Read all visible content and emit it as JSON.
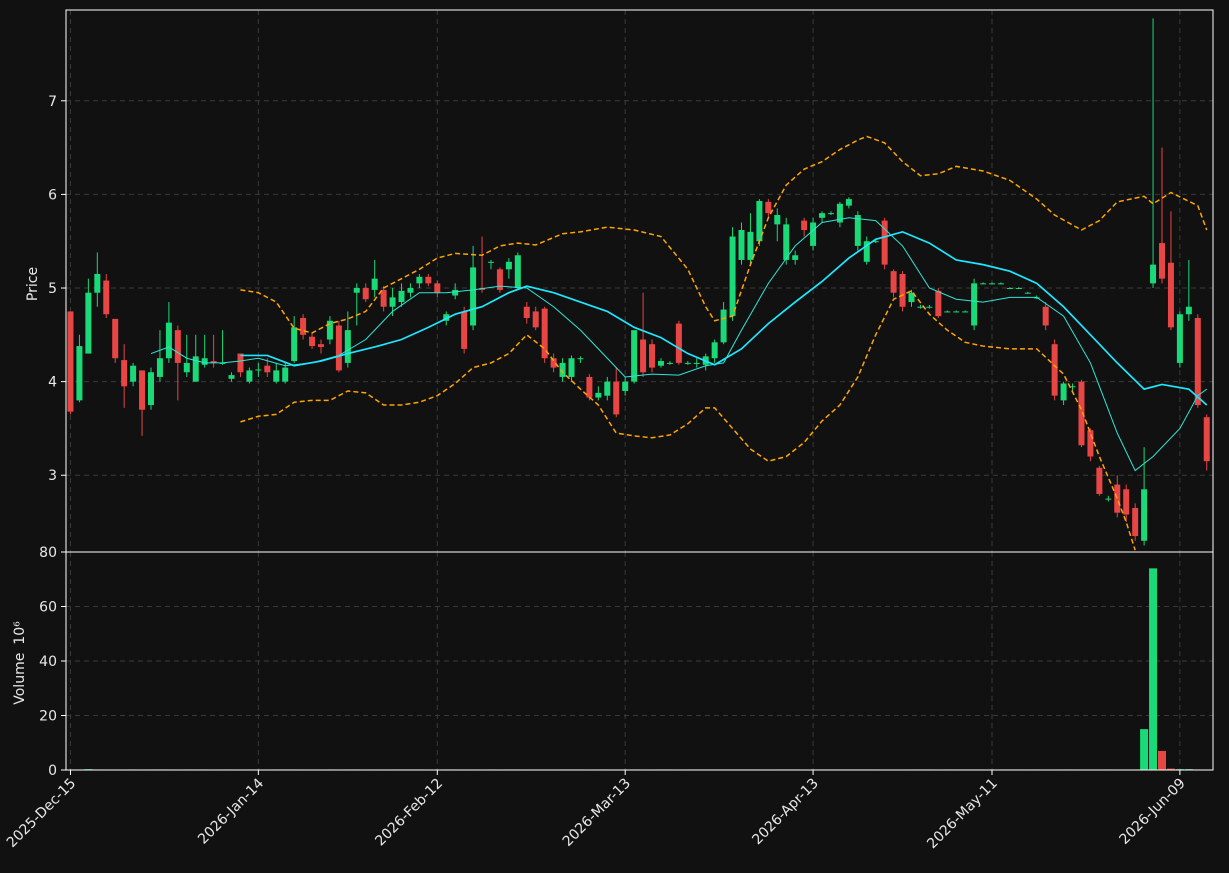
{
  "chart_data": {
    "type": "candlestick",
    "ylabel": "Price",
    "ylim": [
      2.18,
      7.97
    ],
    "yticks": [
      3,
      4,
      5,
      6,
      7
    ],
    "xlim": [
      -0.5,
      127.7
    ],
    "xticks": [
      {
        "value": 0,
        "label": "2025-Dec-15"
      },
      {
        "value": 21,
        "label": "2026-Jan-14"
      },
      {
        "value": 41,
        "label": "2026-Feb-12"
      },
      {
        "value": 62,
        "label": "2026-Mar-13"
      },
      {
        "value": 83,
        "label": "2026-Apr-13"
      },
      {
        "value": 103,
        "label": "2026-May-11"
      },
      {
        "value": 124,
        "label": "2026-Jun-09"
      }
    ],
    "grid": true,
    "up_color": "#19d978",
    "down_color": "#e84545",
    "ohlc": [
      [
        4.75,
        4.75,
        3.65,
        3.68
      ],
      [
        3.8,
        4.5,
        3.78,
        4.38
      ],
      [
        4.3,
        5.1,
        4.3,
        4.95
      ],
      [
        4.95,
        5.38,
        4.8,
        5.15
      ],
      [
        5.08,
        5.15,
        4.68,
        4.72
      ],
      [
        4.67,
        4.67,
        4.2,
        4.25
      ],
      [
        4.23,
        4.4,
        3.72,
        3.95
      ],
      [
        4.0,
        4.2,
        3.95,
        4.17
      ],
      [
        4.12,
        4.12,
        3.42,
        3.7
      ],
      [
        3.75,
        4.15,
        3.7,
        4.1
      ],
      [
        4.05,
        4.55,
        4.0,
        4.25
      ],
      [
        4.25,
        4.85,
        4.2,
        4.63
      ],
      [
        4.55,
        4.6,
        3.8,
        4.2
      ],
      [
        4.1,
        4.5,
        4.05,
        4.2
      ],
      [
        4.0,
        4.5,
        4.0,
        4.27
      ],
      [
        4.18,
        4.5,
        4.15,
        4.25
      ],
      [
        4.22,
        4.5,
        4.15,
        4.2
      ],
      [
        4.2,
        4.55,
        4.18,
        4.2
      ],
      [
        4.03,
        4.1,
        4.0,
        4.07
      ],
      [
        4.3,
        4.3,
        4.05,
        4.1
      ],
      [
        4.0,
        4.15,
        3.98,
        4.12
      ],
      [
        4.12,
        4.2,
        4.05,
        4.13
      ],
      [
        4.17,
        4.25,
        4.05,
        4.1
      ],
      [
        4.0,
        4.2,
        3.98,
        4.12
      ],
      [
        4.0,
        4.2,
        3.98,
        4.15
      ],
      [
        4.22,
        4.7,
        4.2,
        4.58
      ],
      [
        4.68,
        4.72,
        4.45,
        4.5
      ],
      [
        4.48,
        4.52,
        4.35,
        4.38
      ],
      [
        4.4,
        4.45,
        4.3,
        4.37
      ],
      [
        4.45,
        4.7,
        4.4,
        4.65
      ],
      [
        4.6,
        4.65,
        4.1,
        4.12
      ],
      [
        4.2,
        4.75,
        4.15,
        4.55
      ],
      [
        4.95,
        5.05,
        4.6,
        5.0
      ],
      [
        5.0,
        5.05,
        4.85,
        4.88
      ],
      [
        4.98,
        5.3,
        4.9,
        5.1
      ],
      [
        4.98,
        5.02,
        4.75,
        4.8
      ],
      [
        4.8,
        5.0,
        4.7,
        4.9
      ],
      [
        4.85,
        5.05,
        4.8,
        4.97
      ],
      [
        4.95,
        5.05,
        4.9,
        5.0
      ],
      [
        5.05,
        5.15,
        5.0,
        5.12
      ],
      [
        5.12,
        5.15,
        5.02,
        5.05
      ],
      [
        5.05,
        5.08,
        4.9,
        4.95
      ],
      [
        4.65,
        4.75,
        4.6,
        4.72
      ],
      [
        4.92,
        5.05,
        4.88,
        4.98
      ],
      [
        4.75,
        4.8,
        4.3,
        4.35
      ],
      [
        4.6,
        5.45,
        4.55,
        5.22
      ],
      [
        5.0,
        5.55,
        4.95,
        4.98
      ],
      [
        5.27,
        5.3,
        5.2,
        5.28
      ],
      [
        5.2,
        5.22,
        4.95,
        4.98
      ],
      [
        5.2,
        5.32,
        5.1,
        5.28
      ],
      [
        5.0,
        5.38,
        4.98,
        5.35
      ],
      [
        4.8,
        4.85,
        4.62,
        4.68
      ],
      [
        4.75,
        4.8,
        4.55,
        4.58
      ],
      [
        4.78,
        4.8,
        4.2,
        4.25
      ],
      [
        4.25,
        4.3,
        4.1,
        4.15
      ],
      [
        4.05,
        4.25,
        4.0,
        4.2
      ],
      [
        4.05,
        4.28,
        4.0,
        4.25
      ],
      [
        4.25,
        4.27,
        4.2,
        4.25
      ],
      [
        4.05,
        4.08,
        3.8,
        3.83
      ],
      [
        3.83,
        3.95,
        3.8,
        3.88
      ],
      [
        3.85,
        4.05,
        3.8,
        4.0
      ],
      [
        4.0,
        4.15,
        3.62,
        3.65
      ],
      [
        3.9,
        4.05,
        3.85,
        4.0
      ],
      [
        4.0,
        4.55,
        3.98,
        4.55
      ],
      [
        4.45,
        4.95,
        4.05,
        4.1
      ],
      [
        4.4,
        4.45,
        4.1,
        4.15
      ],
      [
        4.17,
        4.25,
        4.15,
        4.22
      ],
      [
        4.2,
        4.22,
        4.18,
        4.2
      ],
      [
        4.62,
        4.65,
        4.18,
        4.2
      ],
      [
        4.2,
        4.22,
        4.18,
        4.2
      ],
      [
        4.2,
        4.25,
        4.15,
        4.2
      ],
      [
        4.18,
        4.3,
        4.12,
        4.27
      ],
      [
        4.25,
        4.45,
        4.2,
        4.42
      ],
      [
        4.42,
        4.85,
        4.4,
        4.77
      ],
      [
        4.7,
        5.65,
        4.65,
        5.55
      ],
      [
        5.3,
        5.7,
        5.25,
        5.62
      ],
      [
        5.3,
        5.8,
        5.25,
        5.6
      ],
      [
        5.5,
        5.95,
        5.45,
        5.93
      ],
      [
        5.92,
        5.95,
        5.75,
        5.8
      ],
      [
        5.68,
        5.85,
        5.5,
        5.78
      ],
      [
        5.3,
        5.75,
        5.25,
        5.68
      ],
      [
        5.3,
        5.4,
        5.25,
        5.35
      ],
      [
        5.72,
        5.75,
        5.55,
        5.62
      ],
      [
        5.45,
        5.75,
        5.4,
        5.7
      ],
      [
        5.75,
        5.82,
        5.7,
        5.8
      ],
      [
        5.8,
        5.82,
        5.78,
        5.8
      ],
      [
        5.7,
        5.92,
        5.65,
        5.9
      ],
      [
        5.88,
        5.97,
        5.85,
        5.95
      ],
      [
        5.45,
        5.82,
        5.4,
        5.78
      ],
      [
        5.28,
        5.55,
        5.25,
        5.5
      ],
      [
        5.5,
        5.52,
        5.48,
        5.5
      ],
      [
        5.72,
        5.75,
        5.2,
        5.25
      ],
      [
        5.18,
        5.2,
        4.9,
        4.95
      ],
      [
        5.15,
        5.18,
        4.75,
        4.8
      ],
      [
        4.85,
        4.98,
        4.8,
        4.95
      ],
      [
        4.8,
        4.82,
        4.78,
        4.8
      ],
      [
        4.8,
        4.82,
        4.78,
        4.8
      ],
      [
        4.97,
        5.0,
        4.68,
        4.7
      ],
      [
        4.75,
        4.76,
        4.74,
        4.75
      ],
      [
        4.75,
        4.76,
        4.74,
        4.75
      ],
      [
        4.75,
        4.76,
        4.74,
        4.75
      ],
      [
        4.6,
        5.1,
        4.55,
        5.05
      ],
      [
        5.05,
        5.06,
        5.04,
        5.05
      ],
      [
        5.05,
        5.06,
        5.04,
        5.05
      ],
      [
        5.05,
        5.06,
        5.04,
        5.05
      ],
      [
        5.0,
        5.01,
        4.99,
        5.0
      ],
      [
        5.0,
        5.01,
        4.99,
        5.0
      ],
      [
        4.95,
        4.96,
        4.94,
        4.95
      ],
      [
        4.9,
        4.92,
        4.88,
        4.9
      ],
      [
        4.8,
        4.85,
        4.55,
        4.6
      ],
      [
        4.4,
        4.45,
        3.8,
        3.85
      ],
      [
        3.8,
        4.0,
        3.75,
        3.98
      ],
      [
        3.95,
        3.98,
        3.9,
        3.95
      ],
      [
        4.0,
        4.02,
        3.3,
        3.32
      ],
      [
        3.48,
        3.5,
        3.15,
        3.2
      ],
      [
        3.08,
        3.1,
        2.78,
        2.8
      ],
      [
        2.75,
        2.78,
        2.72,
        2.75
      ],
      [
        2.9,
        3.0,
        2.55,
        2.6
      ],
      [
        2.85,
        2.9,
        2.5,
        2.58
      ],
      [
        2.65,
        2.7,
        2.3,
        2.35
      ],
      [
        2.3,
        3.3,
        2.25,
        2.85
      ],
      [
        5.05,
        7.88,
        5.0,
        5.25
      ],
      [
        5.48,
        6.5,
        5.05,
        5.1
      ],
      [
        5.27,
        5.82,
        4.55,
        4.58
      ],
      [
        4.2,
        4.75,
        4.15,
        4.72
      ],
      [
        4.72,
        5.3,
        4.65,
        4.8
      ],
      [
        4.68,
        4.72,
        3.72,
        3.75
      ],
      [
        3.62,
        3.65,
        3.05,
        3.15
      ]
    ],
    "lines": [
      {
        "color": "#2ee6d6",
        "width": 1,
        "style": "solid",
        "x": [
          9,
          11,
          13,
          15,
          17,
          19,
          21,
          24,
          27,
          30,
          33,
          36,
          39,
          42,
          45,
          48,
          51,
          54,
          57,
          60,
          62,
          65,
          68,
          71,
          73,
          75,
          78,
          81,
          84,
          87,
          90,
          93,
          96,
          99,
          102,
          105,
          108,
          111,
          114,
          117,
          119,
          121,
          124,
          126,
          127
        ],
        "values": [
          4.3,
          4.37,
          4.25,
          4.2,
          4.2,
          4.22,
          4.25,
          4.17,
          4.2,
          4.28,
          4.45,
          4.75,
          4.95,
          4.95,
          4.98,
          5.02,
          5.0,
          4.8,
          4.55,
          4.25,
          4.05,
          4.08,
          4.07,
          4.17,
          4.2,
          4.55,
          5.05,
          5.45,
          5.7,
          5.75,
          5.72,
          5.45,
          5.0,
          4.88,
          4.85,
          4.9,
          4.9,
          4.7,
          4.2,
          3.45,
          3.05,
          3.2,
          3.5,
          3.85,
          3.92
        ]
      },
      {
        "color": "#1ee8ff",
        "width": 1.7,
        "style": "solid",
        "x": [
          19,
          22,
          25,
          28,
          31,
          34,
          37,
          40,
          43,
          46,
          49,
          51,
          54,
          57,
          60,
          63,
          66,
          69,
          72,
          75,
          78,
          81,
          84,
          87,
          90,
          93,
          96,
          99,
          102,
          105,
          108,
          111,
          114,
          117,
          120,
          122,
          125,
          127
        ],
        "values": [
          4.28,
          4.28,
          4.17,
          4.22,
          4.3,
          4.37,
          4.45,
          4.58,
          4.72,
          4.8,
          4.95,
          5.02,
          4.95,
          4.85,
          4.75,
          4.58,
          4.47,
          4.3,
          4.18,
          4.35,
          4.62,
          4.85,
          5.07,
          5.32,
          5.52,
          5.6,
          5.48,
          5.3,
          5.25,
          5.18,
          5.05,
          4.8,
          4.5,
          4.2,
          3.92,
          3.97,
          3.92,
          3.75
        ]
      },
      {
        "color": "#ffa500",
        "width": 1.5,
        "style": "dashed",
        "x": [
          19,
          21,
          23,
          25,
          27,
          29,
          31,
          33,
          35,
          37,
          39,
          41,
          43,
          46,
          48,
          50,
          52,
          55,
          57,
          60,
          63,
          66,
          69,
          71,
          72,
          74,
          76,
          78,
          80,
          82,
          84,
          86,
          88,
          89,
          91,
          93,
          95,
          97,
          99,
          102,
          105,
          108,
          110,
          113,
          115,
          117,
          120,
          121,
          123,
          126,
          127
        ],
        "values": [
          4.98,
          4.95,
          4.85,
          4.57,
          4.52,
          4.62,
          4.67,
          4.75,
          5.0,
          5.1,
          5.2,
          5.32,
          5.37,
          5.35,
          5.45,
          5.48,
          5.46,
          5.58,
          5.6,
          5.65,
          5.62,
          5.55,
          5.2,
          4.8,
          4.65,
          4.7,
          5.25,
          5.75,
          6.1,
          6.27,
          6.35,
          6.48,
          6.58,
          6.62,
          6.55,
          6.35,
          6.2,
          6.22,
          6.3,
          6.25,
          6.15,
          5.95,
          5.78,
          5.62,
          5.72,
          5.92,
          5.98,
          5.9,
          6.02,
          5.88,
          5.62
        ]
      },
      {
        "color": "#ffa500",
        "width": 1.5,
        "style": "dashed",
        "x": [
          19,
          21,
          23,
          25,
          27,
          29,
          31,
          33,
          35,
          37,
          39,
          41,
          43,
          45,
          47,
          49,
          51,
          53,
          55,
          57,
          59,
          61,
          63,
          65,
          67,
          69,
          71,
          72,
          74,
          76,
          78,
          80,
          82,
          84,
          86,
          88,
          90,
          92,
          94,
          96,
          98,
          100,
          102,
          105,
          108,
          111,
          113,
          115,
          117,
          118,
          119
        ],
        "values": [
          3.57,
          3.63,
          3.65,
          3.78,
          3.8,
          3.8,
          3.9,
          3.88,
          3.75,
          3.75,
          3.78,
          3.85,
          3.98,
          4.15,
          4.2,
          4.3,
          4.5,
          4.35,
          4.1,
          3.92,
          3.75,
          3.45,
          3.42,
          3.4,
          3.43,
          3.55,
          3.72,
          3.72,
          3.5,
          3.28,
          3.15,
          3.2,
          3.35,
          3.58,
          3.75,
          4.05,
          4.5,
          4.88,
          4.97,
          4.72,
          4.55,
          4.42,
          4.38,
          4.35,
          4.35,
          4.08,
          3.7,
          3.2,
          2.75,
          2.5,
          2.2
        ]
      }
    ],
    "volume": {
      "ylabel": "Volume",
      "offset_text": "10⁶",
      "ylim": [
        0,
        80
      ],
      "yticks": [
        0,
        20,
        40,
        60,
        80
      ],
      "values": [
        0.2,
        0.2,
        0.3,
        0.2,
        0.2,
        0.2,
        0.2,
        0.2,
        0.2,
        0.2,
        0.2,
        0.2,
        0.2,
        0.2,
        0.2,
        0.2,
        0.2,
        0.2,
        0.2,
        0.2,
        0.2,
        0.2,
        0.2,
        0.2,
        0.2,
        0.2,
        0.2,
        0.2,
        0.2,
        0.2,
        0.2,
        0.2,
        0.2,
        0.2,
        0.2,
        0.2,
        0.2,
        0.2,
        0.2,
        0.2,
        0.2,
        0.2,
        0.2,
        0.2,
        0.2,
        0.2,
        0.2,
        0.2,
        0.2,
        0.2,
        0.2,
        0.2,
        0.2,
        0.2,
        0.2,
        0.2,
        0.2,
        0.2,
        0.2,
        0.2,
        0.2,
        0.2,
        0.2,
        0.2,
        0.2,
        0.2,
        0.2,
        0.2,
        0.2,
        0.2,
        0.2,
        0.2,
        0.2,
        0.2,
        0.2,
        0.2,
        0.2,
        0.2,
        0.2,
        0.2,
        0.2,
        0.2,
        0.2,
        0.2,
        0.2,
        0.2,
        0.2,
        0.2,
        0.2,
        0.2,
        0.2,
        0.2,
        0.2,
        0.2,
        0.2,
        0.2,
        0.2,
        0.2,
        0.2,
        0.2,
        0.2,
        0.2,
        0.2,
        0.2,
        0.2,
        0.2,
        0.2,
        0.2,
        0.2,
        0.2,
        0.2,
        0.2,
        0.2,
        0.2,
        0.2,
        0.2,
        0.2,
        0.2,
        0.2,
        0.2,
        15,
        74,
        7,
        0.5,
        0.3,
        0.3,
        0.2,
        0.2
      ]
    }
  }
}
